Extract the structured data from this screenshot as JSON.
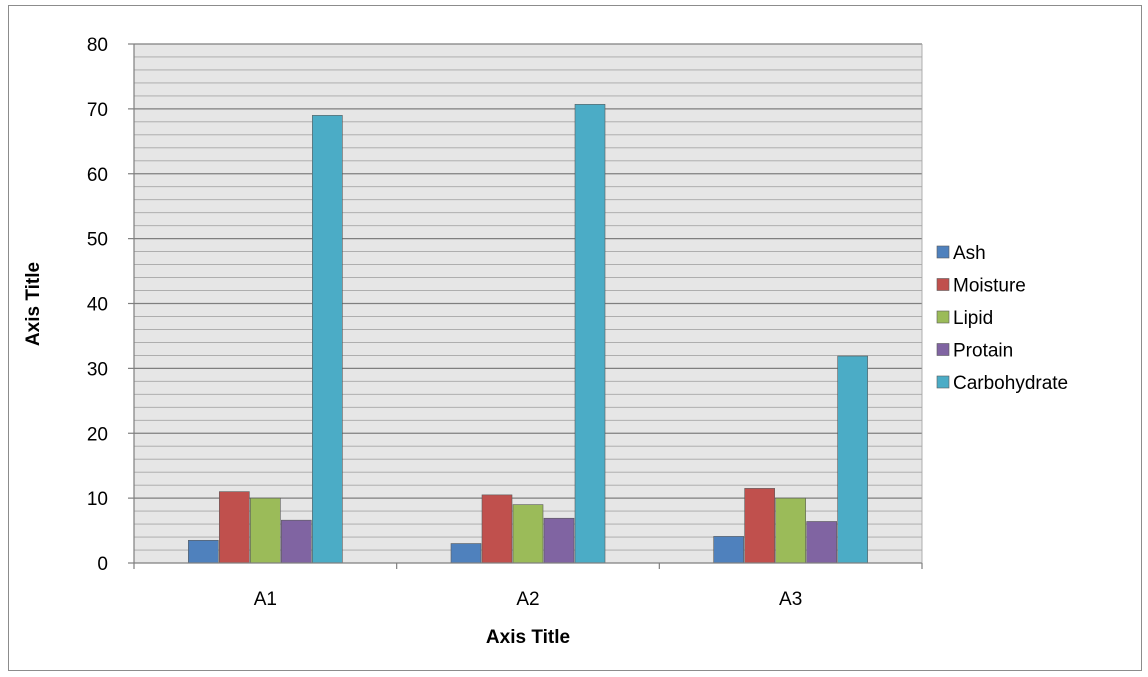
{
  "chart_data": {
    "type": "bar",
    "title": "",
    "xlabel": "Axis Title",
    "ylabel": "Axis Title",
    "categories": [
      "A1",
      "A2",
      "A3"
    ],
    "ylim": [
      0,
      80
    ],
    "y_ticks": [
      0,
      10,
      20,
      30,
      40,
      50,
      60,
      70,
      80
    ],
    "minor_grid_step": 2,
    "grid": true,
    "legend_position": "right",
    "series": [
      {
        "name": "Ash",
        "color": "#4F81BD",
        "values": [
          3.5,
          3.0,
          4.1
        ]
      },
      {
        "name": "Moisture",
        "color": "#C0504D",
        "values": [
          11.0,
          10.5,
          11.5
        ]
      },
      {
        "name": "Lipid",
        "color": "#9BBB59",
        "values": [
          10.0,
          9.0,
          10.0
        ]
      },
      {
        "name": "Protain",
        "color": "#8064A2",
        "values": [
          6.6,
          6.9,
          6.4
        ]
      },
      {
        "name": "Carbohydrate",
        "color": "#4BACC6",
        "values": [
          69.0,
          70.7,
          31.9
        ]
      }
    ]
  }
}
